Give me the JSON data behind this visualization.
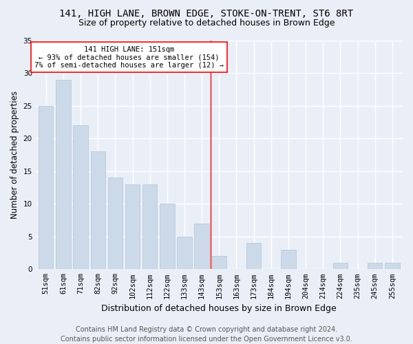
{
  "title": "141, HIGH LANE, BROWN EDGE, STOKE-ON-TRENT, ST6 8RT",
  "subtitle": "Size of property relative to detached houses in Brown Edge",
  "xlabel": "Distribution of detached houses by size in Brown Edge",
  "ylabel": "Number of detached properties",
  "categories": [
    "51sqm",
    "61sqm",
    "71sqm",
    "82sqm",
    "92sqm",
    "102sqm",
    "112sqm",
    "122sqm",
    "133sqm",
    "143sqm",
    "153sqm",
    "163sqm",
    "173sqm",
    "184sqm",
    "194sqm",
    "204sqm",
    "214sqm",
    "224sqm",
    "235sqm",
    "245sqm",
    "255sqm"
  ],
  "values": [
    25,
    29,
    22,
    18,
    14,
    13,
    13,
    10,
    5,
    7,
    2,
    0,
    4,
    0,
    3,
    0,
    0,
    1,
    0,
    1,
    1
  ],
  "bar_color": "#ccd9e8",
  "bar_edge_color": "#b0c4d8",
  "bg_color": "#eaeff7",
  "grid_color": "#ffffff",
  "annotation_line_color": "red",
  "annotation_text": "141 HIGH LANE: 151sqm\n← 93% of detached houses are smaller (154)\n7% of semi-detached houses are larger (12) →",
  "annotation_box_color": "white",
  "annotation_box_edge": "red",
  "ylim": [
    0,
    35
  ],
  "yticks": [
    0,
    5,
    10,
    15,
    20,
    25,
    30,
    35
  ],
  "footnote": "Contains HM Land Registry data © Crown copyright and database right 2024.\nContains public sector information licensed under the Open Government Licence v3.0.",
  "title_fontsize": 10,
  "subtitle_fontsize": 9,
  "xlabel_fontsize": 9,
  "ylabel_fontsize": 8.5,
  "tick_fontsize": 7.5,
  "footnote_fontsize": 7,
  "annot_fontsize": 7.5,
  "line_x_index": 9.5
}
